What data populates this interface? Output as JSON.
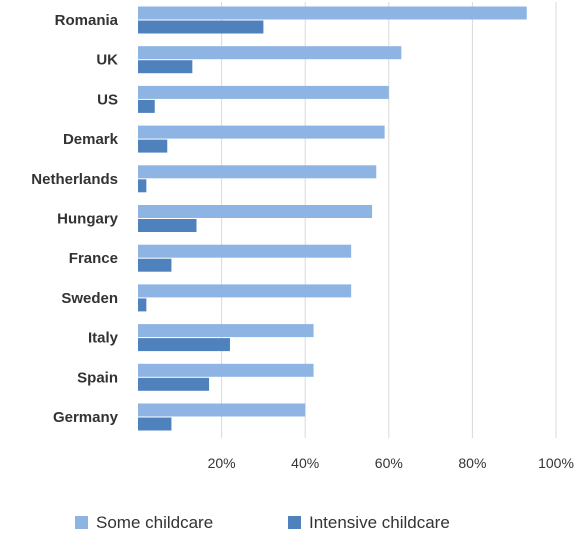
{
  "chart_data": {
    "type": "bar",
    "orientation": "horizontal",
    "categories": [
      "Romania",
      "UK",
      "US",
      "Demark",
      "Netherlands",
      "Hungary",
      "France",
      "Sweden",
      "Italy",
      "Spain",
      "Germany"
    ],
    "series": [
      {
        "name": "Some childcare",
        "color": "#8db4e2",
        "values": [
          93,
          63,
          60,
          59,
          57,
          56,
          51,
          51,
          42,
          42,
          40
        ]
      },
      {
        "name": "Intensive childcare",
        "color": "#4f81bd",
        "values": [
          30,
          13,
          4,
          7,
          2,
          14,
          8,
          2,
          22,
          17,
          8
        ]
      }
    ],
    "title": "",
    "xlabel": "",
    "ylabel": "",
    "xlim": [
      0,
      100
    ],
    "xticks": [
      20,
      40,
      60,
      80,
      100
    ],
    "xtick_labels": [
      "20%",
      "40%",
      "60%",
      "80%",
      "100%"
    ],
    "grid": true,
    "legend_position": "bottom"
  }
}
